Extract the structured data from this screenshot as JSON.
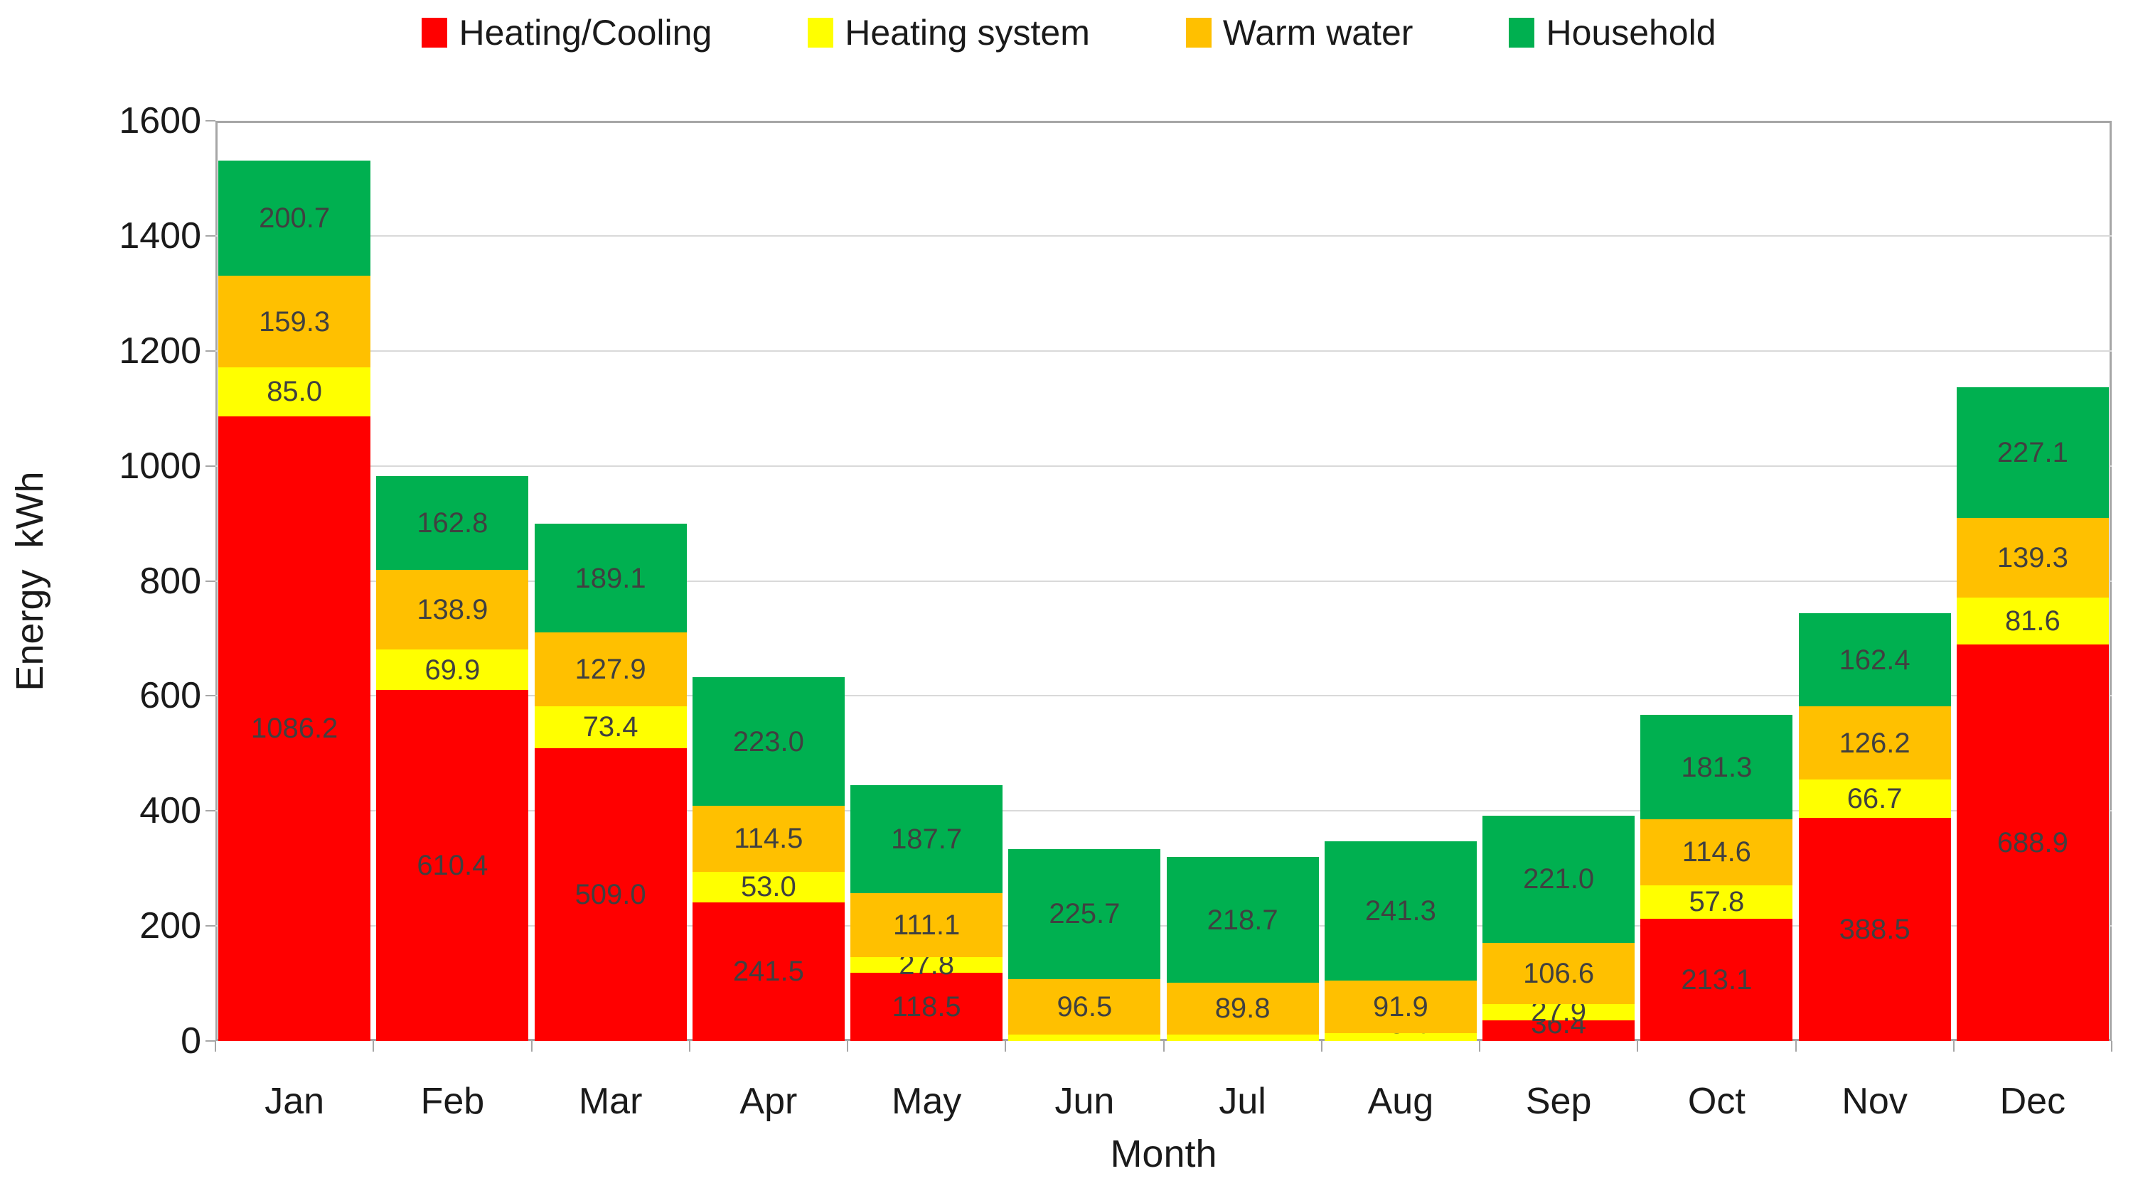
{
  "chart_data": {
    "type": "bar",
    "stacked": true,
    "categories": [
      "Jan",
      "Feb",
      "Mar",
      "Apr",
      "May",
      "Jun",
      "Jul",
      "Aug",
      "Sep",
      "Oct",
      "Nov",
      "Dec"
    ],
    "series": [
      {
        "name": "Heating/Cooling",
        "color": "#FF0000",
        "values": [
          1086.2,
          610.4,
          509.0,
          241.5,
          118.5,
          0,
          0,
          0,
          36.4,
          213.1,
          388.5,
          688.9
        ]
      },
      {
        "name": "Heating system",
        "color": "#FFFF00",
        "values": [
          85.0,
          69.9,
          73.4,
          53.0,
          27.8,
          11.5,
          11.4,
          13.4,
          27.9,
          57.8,
          66.7,
          81.6
        ]
      },
      {
        "name": "Warm water",
        "color": "#FFC000",
        "values": [
          159.3,
          138.9,
          127.9,
          114.5,
          111.1,
          96.5,
          89.8,
          91.9,
          106.6,
          114.6,
          126.2,
          139.3
        ]
      },
      {
        "name": "Household",
        "color": "#00B050",
        "values": [
          200.7,
          162.8,
          189.1,
          223.0,
          187.7,
          225.7,
          218.7,
          241.3,
          221.0,
          181.3,
          162.4,
          227.1
        ]
      }
    ],
    "xlabel": "Month",
    "ylabel": "Energy  kWh",
    "ylim": [
      0,
      1600
    ],
    "ytick_step": 200,
    "yticks": [
      "0",
      "200",
      "400",
      "600",
      "800",
      "1000",
      "1200",
      "1400",
      "1600"
    ],
    "grid": true,
    "legend_position": "top",
    "data_label_decimals": 1
  },
  "style": {
    "background": "#FFFFFF",
    "plot_border_color": "#A6A6A6",
    "gridline_color": "#D9D9D9",
    "data_label_color": "#404040",
    "axis_text_color": "#1A1A1A"
  }
}
